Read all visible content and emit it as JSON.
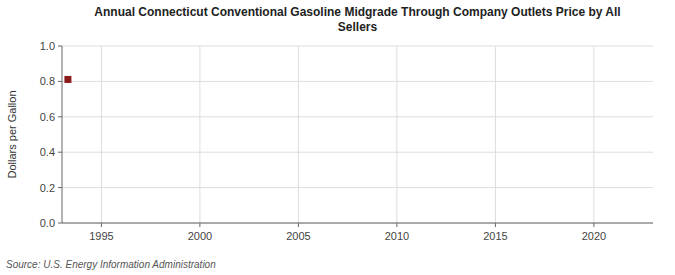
{
  "chart_data": {
    "type": "scatter",
    "title": "Annual Connecticut Conventional Gasoline Midgrade Through Company Outlets Price by All\nSellers",
    "ylabel": "Dollars per Gallon",
    "source": "Source: U.S. Energy Information Administration",
    "x": [
      1993.3
    ],
    "values": [
      0.811
    ],
    "color": "#8b1a1a",
    "marker": "square",
    "xlim": [
      1993,
      2023
    ],
    "ylim": [
      0.0,
      1.0
    ],
    "xticks": [
      1995,
      2000,
      2005,
      2010,
      2015,
      2020
    ],
    "yticks": [
      {
        "value": 0.0,
        "label": "0.0"
      },
      0.2,
      0.4,
      0.6,
      0.8,
      {
        "value": 1.0,
        "label": "1.0"
      }
    ],
    "grid": true
  }
}
